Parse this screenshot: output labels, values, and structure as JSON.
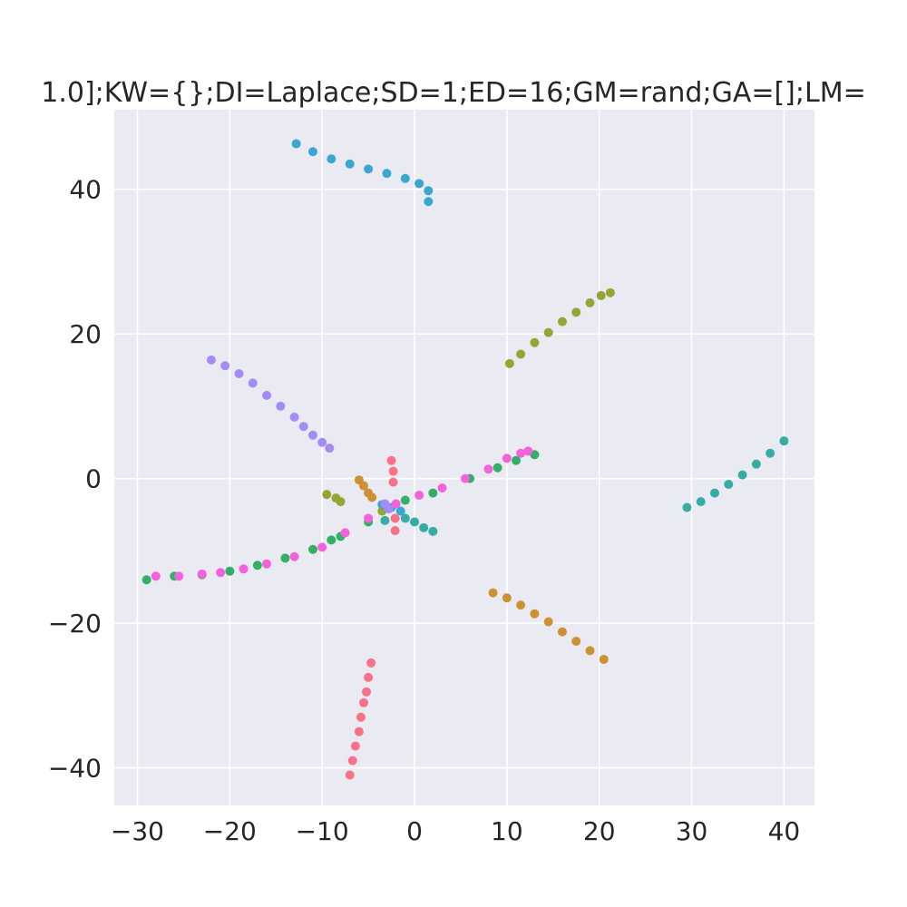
{
  "chart_data": {
    "type": "scatter",
    "title": "1.0];KW={};DI=Laplace;SD=1;ED=16;GM=rand;GA=[];LM=",
    "xlabel": "",
    "ylabel": "",
    "xlim": [
      -32.5,
      43.3
    ],
    "ylim": [
      -45.2,
      51.0
    ],
    "xticks": [
      -30,
      -20,
      -10,
      0,
      10,
      20,
      30,
      40
    ],
    "yticks": [
      -40,
      -20,
      0,
      20,
      40
    ],
    "xtick_labels": [
      "−30",
      "−20",
      "−10",
      "0",
      "10",
      "20",
      "30",
      "40"
    ],
    "ytick_labels": [
      "−40",
      "−20",
      "0",
      "20",
      "40"
    ],
    "grid": true,
    "background": "#eaeaf2",
    "grid_color": "#ffffff",
    "series": [
      {
        "color": "#f77189",
        "points": [
          [
            -7.0,
            -41.0
          ],
          [
            -6.7,
            -39.0
          ],
          [
            -6.4,
            -37.0
          ],
          [
            -6.0,
            -35.0
          ],
          [
            -5.8,
            -33.0
          ],
          [
            -5.5,
            -31.0
          ],
          [
            -5.2,
            -29.5
          ],
          [
            -5.0,
            -27.5
          ],
          [
            -4.7,
            -25.5
          ],
          [
            -2.5,
            2.5
          ],
          [
            -2.3,
            1.0
          ],
          [
            -2.3,
            -0.5
          ],
          [
            -2.1,
            -5.5
          ],
          [
            -2.1,
            -7.2
          ]
        ]
      },
      {
        "color": "#ce9032",
        "points": [
          [
            8.5,
            -15.8
          ],
          [
            10.0,
            -16.5
          ],
          [
            11.5,
            -17.5
          ],
          [
            13.0,
            -18.7
          ],
          [
            14.5,
            -19.8
          ],
          [
            16.0,
            -21.2
          ],
          [
            17.5,
            -22.5
          ],
          [
            19.0,
            -23.8
          ],
          [
            20.5,
            -25.0
          ],
          [
            -6.0,
            -0.2
          ],
          [
            -5.5,
            -1.0
          ],
          [
            -5.0,
            -2.0
          ],
          [
            -4.6,
            -2.6
          ]
        ]
      },
      {
        "color": "#97a431",
        "points": [
          [
            10.3,
            15.9
          ],
          [
            11.5,
            17.2
          ],
          [
            13.0,
            18.8
          ],
          [
            14.5,
            20.2
          ],
          [
            16.0,
            21.7
          ],
          [
            17.5,
            23.0
          ],
          [
            19.0,
            24.3
          ],
          [
            20.2,
            25.3
          ],
          [
            21.2,
            25.7
          ],
          [
            -9.5,
            -2.2
          ],
          [
            -8.5,
            -2.7
          ],
          [
            -8.0,
            -3.2
          ],
          [
            -3.5,
            -4.5
          ]
        ]
      },
      {
        "color": "#32b166",
        "points": [
          [
            -29.0,
            -14.0
          ],
          [
            -26.0,
            -13.5
          ],
          [
            -23.0,
            -13.3
          ],
          [
            -20.0,
            -12.8
          ],
          [
            -17.0,
            -12.0
          ],
          [
            -14.0,
            -11.0
          ],
          [
            -11.0,
            -9.8
          ],
          [
            -9.0,
            -8.5
          ],
          [
            -8.0,
            -8.0
          ],
          [
            -5.0,
            -6.0
          ],
          [
            -1.0,
            -3.0
          ],
          [
            2.0,
            -2.0
          ],
          [
            6.0,
            0.0
          ],
          [
            9.0,
            1.5
          ],
          [
            11.0,
            2.5
          ],
          [
            13.0,
            3.3
          ]
        ]
      },
      {
        "color": "#36ada4",
        "points": [
          [
            29.5,
            -4.0
          ],
          [
            31.0,
            -3.2
          ],
          [
            32.5,
            -2.0
          ],
          [
            34.0,
            -0.8
          ],
          [
            35.5,
            0.5
          ],
          [
            37.0,
            2.0
          ],
          [
            38.5,
            3.5
          ],
          [
            40.0,
            5.2
          ],
          [
            0.0,
            -6.0
          ],
          [
            1.0,
            -6.8
          ],
          [
            2.0,
            -7.3
          ],
          [
            -1.0,
            -5.5
          ],
          [
            -3.2,
            -5.8
          ]
        ]
      },
      {
        "color": "#39a7d0",
        "points": [
          [
            -12.8,
            46.3
          ],
          [
            -11.0,
            45.2
          ],
          [
            -9.0,
            44.2
          ],
          [
            -7.0,
            43.5
          ],
          [
            -5.0,
            42.8
          ],
          [
            -3.0,
            42.2
          ],
          [
            -1.0,
            41.5
          ],
          [
            0.5,
            40.8
          ],
          [
            1.5,
            39.8
          ],
          [
            1.5,
            38.3
          ],
          [
            -3.5,
            -3.6
          ],
          [
            -2.5,
            -4.0
          ],
          [
            -1.5,
            -4.5
          ]
        ]
      },
      {
        "color": "#a48cf4",
        "points": [
          [
            -22.0,
            16.4
          ],
          [
            -20.5,
            15.6
          ],
          [
            -19.0,
            14.5
          ],
          [
            -17.5,
            13.2
          ],
          [
            -16.0,
            11.5
          ],
          [
            -14.5,
            10.0
          ],
          [
            -13.0,
            8.5
          ],
          [
            -12.0,
            7.2
          ],
          [
            -11.0,
            6.0
          ],
          [
            -10.0,
            5.0
          ],
          [
            -9.2,
            4.2
          ],
          [
            -3.2,
            -3.5
          ],
          [
            -2.8,
            -4.2
          ]
        ]
      },
      {
        "color": "#f461dd",
        "points": [
          [
            -28.0,
            -13.5
          ],
          [
            -25.5,
            -13.5
          ],
          [
            -23.0,
            -13.2
          ],
          [
            -21.0,
            -13.0
          ],
          [
            -18.5,
            -12.5
          ],
          [
            -16.0,
            -11.8
          ],
          [
            -13.0,
            -10.8
          ],
          [
            -10.0,
            -9.5
          ],
          [
            -7.5,
            -7.5
          ],
          [
            -5.0,
            -5.5
          ],
          [
            -2.0,
            -3.5
          ],
          [
            0.5,
            -2.3
          ],
          [
            3.0,
            -1.3
          ],
          [
            5.5,
            0.0
          ],
          [
            8.0,
            1.3
          ],
          [
            10.0,
            2.8
          ],
          [
            11.5,
            3.5
          ],
          [
            12.3,
            3.8
          ]
        ]
      }
    ]
  }
}
